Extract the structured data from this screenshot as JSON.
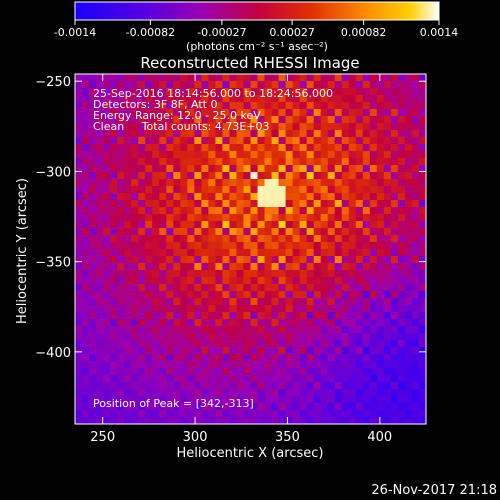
{
  "chart_data": {
    "type": "heatmap",
    "title": "Reconstructed RHESSI Image",
    "xlabel": "Heliocentric X (arcsec)",
    "ylabel": "Heliocentric Y (arcsec)",
    "xlim": [
      235,
      425
    ],
    "ylim": [
      -440,
      -246
    ],
    "x_ticks": [
      250,
      300,
      350,
      400
    ],
    "y_ticks": [
      -250,
      -300,
      -350,
      -400
    ],
    "peak": {
      "x": 342,
      "y": -313
    },
    "colorbar": {
      "min": -0.0014,
      "max": 0.0014,
      "ticks": [
        "-0.0014",
        "-0.00082",
        "-0.00027",
        "0.00027",
        "0.00082",
        "0.0014"
      ],
      "tick_values": [
        -0.0014,
        -0.00082,
        -0.00027,
        0.00027,
        0.00082,
        0.0014
      ],
      "unit_label": "(photons cm⁻² s⁻¹ asec⁻²)",
      "colors": [
        "#1a00ff",
        "#5a00e0",
        "#9a00b0",
        "#c20040",
        "#e03000",
        "#ff8c00",
        "#ffd000",
        "#ffffff"
      ]
    },
    "annotations": [
      "25-Sep-2016 18:14:56.000 to 18:24:56.000",
      "Detectors: 3F 8F, Att 0",
      "Energy Range: 12.0 - 25.0 keV",
      "Clean     Total counts: 4.73E+03"
    ],
    "peak_label": "Position of Peak = [342,-313]"
  },
  "footer": {
    "timestamp": "26-Nov-2017 21:18"
  }
}
